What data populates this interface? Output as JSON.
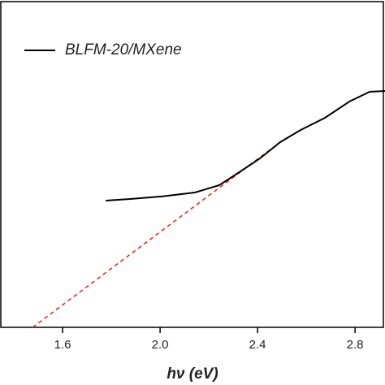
{
  "chart_data": {
    "type": "line",
    "x_label": "hν (eV)",
    "legend": "upper left",
    "series": [
      {
        "name": "BLFM-20/MXene",
        "color": "#000000",
        "x": [
          1.777,
          1.877,
          2.01,
          2.143,
          2.243,
          2.31,
          2.41,
          2.493,
          2.577,
          2.677,
          2.777,
          2.86,
          2.923
        ],
        "values": [
          3.9,
          3.95,
          4.03,
          4.15,
          4.375,
          4.7,
          5.2,
          5.7,
          6.075,
          6.45,
          6.95,
          7.25,
          7.275
        ]
      }
    ],
    "fit_line": {
      "color": "#e0301e",
      "dashed": true,
      "x": [
        1.477,
        2.493
      ],
      "values": [
        0,
        5.7
      ]
    },
    "xlim": [
      1.343,
      2.923
    ],
    "ylim": [
      0,
      10
    ],
    "xticks": [
      1.6,
      {
        "value": 2,
        "label": "2.0"
      },
      2.4,
      2.8
    ]
  }
}
